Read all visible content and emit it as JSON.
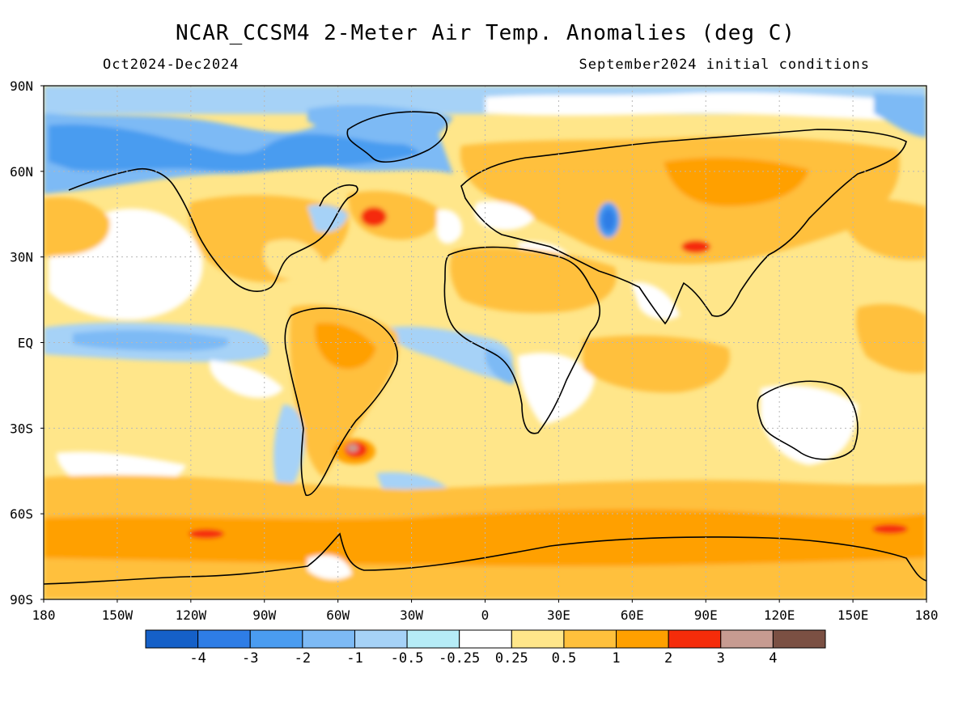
{
  "header": {
    "title": "NCAR_CCSM4 2-Meter Air Temp. Anomalies (deg C)",
    "period": "Oct2024-Dec2024",
    "init": "September2024 initial conditions"
  },
  "axes": {
    "lat_labels": [
      "90N",
      "60N",
      "30N",
      "EQ",
      "30S",
      "60S",
      "90S"
    ],
    "lon_labels": [
      "180",
      "150W",
      "120W",
      "90W",
      "60W",
      "30W",
      "0",
      "30E",
      "60E",
      "90E",
      "120E",
      "150E",
      "180"
    ]
  },
  "legend": {
    "colors": [
      "#1560c8",
      "#2e7de6",
      "#4a9cf0",
      "#7dbaf5",
      "#a6d2f7",
      "#b6ecf7",
      "#ffffff",
      "#ffe68a",
      "#ffc03c",
      "#ffa000",
      "#f52c0a",
      "#c79b91",
      "#7b5043"
    ],
    "labels": [
      "-4",
      "-3",
      "-2",
      "-1",
      "-0.5",
      "-0.25",
      "0.25",
      "0.5",
      "1",
      "2",
      "3",
      "4"
    ]
  },
  "colors": {
    "background": "#ffffff",
    "frame": "#000000",
    "grid": "#b8b8b8"
  }
}
